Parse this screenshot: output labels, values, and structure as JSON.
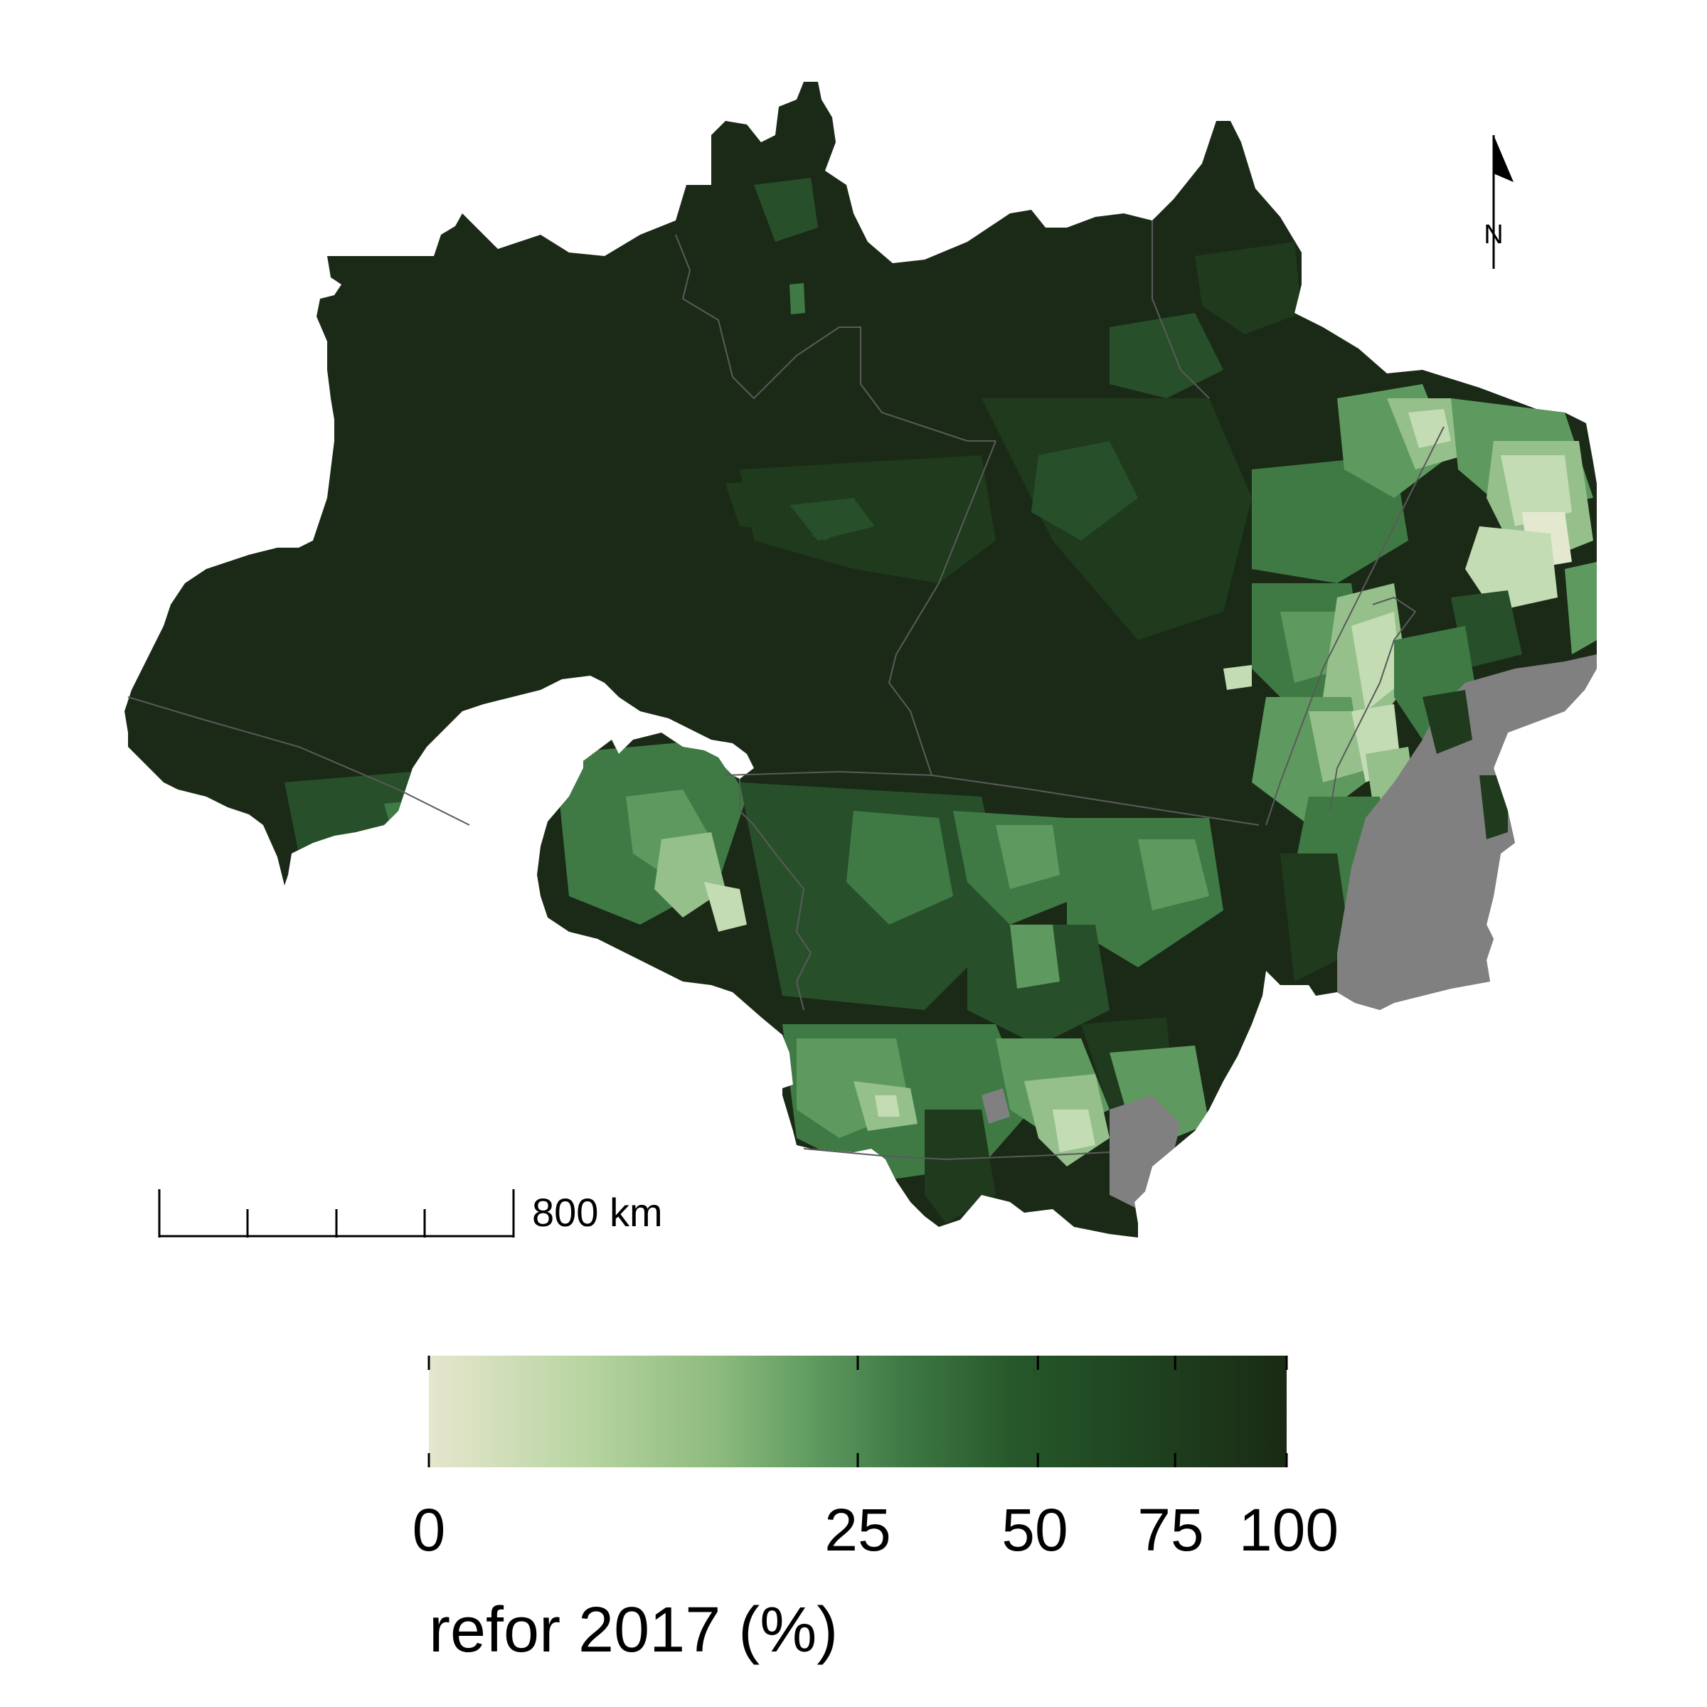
{
  "map": {
    "north_arrow": {
      "label": "N"
    },
    "scale_bar": {
      "label": "800 km",
      "divisions": 4
    },
    "no_data_color": "#808080",
    "border_color": "#5a5a5a",
    "colors": {
      "very_dark": "#1b2a17",
      "dark": "#1f3a1c",
      "mid_dark": "#27502a",
      "mid": "#3f7a45",
      "mid_light": "#5e9a5f",
      "light": "#95c08c",
      "pale": "#c4dcb3",
      "palest": "#e3e8cf"
    }
  },
  "legend": {
    "title": "refor 2017 (%)",
    "ticks": [
      "0",
      "25",
      "50",
      "75",
      "100"
    ],
    "tick_values": [
      0,
      25,
      50,
      75,
      100
    ],
    "nonlinear_stops": [
      0,
      0.5,
      0.71,
      0.87,
      1
    ],
    "gradient_colors": [
      "#e6e6cd",
      "#b8d5a2",
      "#8cba7c",
      "#5e9a5f",
      "#3f7a45",
      "#27582b",
      "#1f4520",
      "#1a2a15"
    ]
  }
}
